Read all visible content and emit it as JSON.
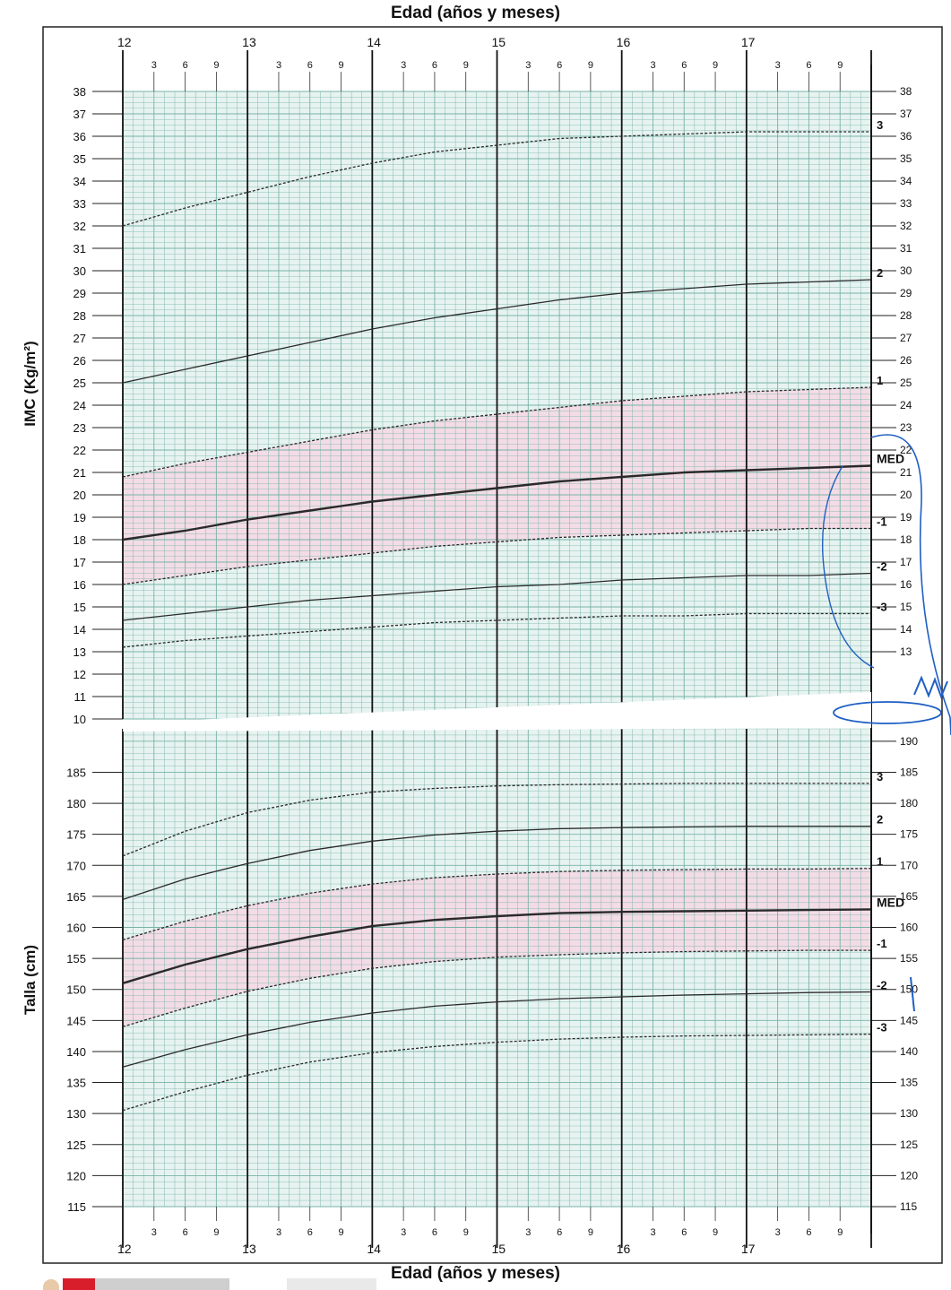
{
  "page": {
    "x_title_top": "Edad (años y meses)",
    "x_title_bottom": "Edad (años y meses)"
  },
  "colors": {
    "grid_green": "#77b3a7",
    "bg_green": "#e7f3f0",
    "band_pink": "#f5d7e3",
    "curve": "#2a2a2a",
    "ink_blue": "#1f5fc4",
    "major_line": "#111111"
  },
  "chart_data": [
    {
      "type": "line",
      "title": "",
      "xlabel": "Edad (años y meses)",
      "ylabel": "IMC (Kg/m²)",
      "xlim": [
        12,
        18
      ],
      "ylim": [
        10,
        38
      ],
      "x_major_ticks": [
        "12",
        "13",
        "14",
        "15",
        "16",
        "17"
      ],
      "x_minor_ticks": [
        "3",
        "6",
        "9"
      ],
      "y_ticks_left": [
        "10",
        "11",
        "12",
        "13",
        "14",
        "15",
        "16",
        "17",
        "18",
        "19",
        "20",
        "21",
        "22",
        "23",
        "24",
        "25",
        "26",
        "27",
        "28",
        "29",
        "30",
        "31",
        "32",
        "33",
        "34",
        "35",
        "36",
        "37",
        "38"
      ],
      "y_ticks_right": [
        "13",
        "14",
        "15",
        "16",
        "17",
        "18",
        "19",
        "20",
        "21",
        "22",
        "23",
        "24",
        "25",
        "26",
        "27",
        "28",
        "29",
        "30",
        "31",
        "32",
        "33",
        "34",
        "35",
        "36",
        "37",
        "38"
      ],
      "shaded_band": [
        -1,
        1
      ],
      "grid": true,
      "x": [
        12,
        12.5,
        13,
        13.5,
        14,
        14.5,
        15,
        15.5,
        16,
        16.5,
        17,
        17.5,
        18
      ],
      "series": [
        {
          "name": "3",
          "dashed": true,
          "values": [
            32.0,
            32.8,
            33.5,
            34.2,
            34.8,
            35.3,
            35.6,
            35.9,
            36.0,
            36.1,
            36.2,
            36.2,
            36.2
          ]
        },
        {
          "name": "2",
          "dashed": false,
          "values": [
            25.0,
            25.6,
            26.2,
            26.8,
            27.4,
            27.9,
            28.3,
            28.7,
            29.0,
            29.2,
            29.4,
            29.5,
            29.6
          ]
        },
        {
          "name": "1",
          "dashed": true,
          "values": [
            20.8,
            21.4,
            21.9,
            22.4,
            22.9,
            23.3,
            23.6,
            23.9,
            24.2,
            24.4,
            24.6,
            24.7,
            24.8
          ]
        },
        {
          "name": "MED",
          "dashed": false,
          "bold": true,
          "values": [
            18.0,
            18.4,
            18.9,
            19.3,
            19.7,
            20.0,
            20.3,
            20.6,
            20.8,
            21.0,
            21.1,
            21.2,
            21.3
          ]
        },
        {
          "name": "-1",
          "dashed": true,
          "values": [
            16.0,
            16.4,
            16.8,
            17.1,
            17.4,
            17.7,
            17.9,
            18.1,
            18.2,
            18.3,
            18.4,
            18.5,
            18.5
          ]
        },
        {
          "name": "-2",
          "dashed": false,
          "values": [
            14.4,
            14.7,
            15.0,
            15.3,
            15.5,
            15.7,
            15.9,
            16.0,
            16.2,
            16.3,
            16.4,
            16.4,
            16.5
          ]
        },
        {
          "name": "-3",
          "dashed": true,
          "values": [
            13.2,
            13.5,
            13.7,
            13.9,
            14.1,
            14.3,
            14.4,
            14.5,
            14.6,
            14.6,
            14.7,
            14.7,
            14.7
          ]
        }
      ]
    },
    {
      "type": "line",
      "title": "",
      "xlabel": "Edad (años y meses)",
      "ylabel": "Talla (cm)",
      "xlim": [
        12,
        18
      ],
      "ylim": [
        115,
        192
      ],
      "x_major_ticks": [
        "12",
        "13",
        "14",
        "15",
        "16",
        "17"
      ],
      "x_minor_ticks": [
        "3",
        "6",
        "9"
      ],
      "y_ticks_left": [
        "115",
        "120",
        "125",
        "130",
        "135",
        "140",
        "145",
        "150",
        "155",
        "160",
        "165",
        "170",
        "175",
        "180",
        "185"
      ],
      "y_ticks_right": [
        "115",
        "120",
        "125",
        "130",
        "135",
        "140",
        "145",
        "150",
        "155",
        "160",
        "165",
        "170",
        "175",
        "180",
        "185",
        "190"
      ],
      "shaded_band": [
        -1,
        1
      ],
      "grid": true,
      "x": [
        12,
        12.5,
        13,
        13.5,
        14,
        14.5,
        15,
        15.5,
        16,
        16.5,
        17,
        17.5,
        18
      ],
      "series": [
        {
          "name": "3",
          "dashed": true,
          "values": [
            171.5,
            175.5,
            178.5,
            180.5,
            181.8,
            182.4,
            182.8,
            183.0,
            183.1,
            183.2,
            183.2,
            183.2,
            183.2
          ]
        },
        {
          "name": "2",
          "dashed": false,
          "values": [
            164.5,
            167.8,
            170.3,
            172.4,
            173.9,
            174.9,
            175.5,
            175.9,
            176.1,
            176.2,
            176.3,
            176.3,
            176.3
          ]
        },
        {
          "name": "1",
          "dashed": true,
          "values": [
            158.0,
            161.0,
            163.5,
            165.5,
            167.0,
            168.0,
            168.6,
            169.0,
            169.2,
            169.3,
            169.4,
            169.4,
            169.5
          ]
        },
        {
          "name": "MED",
          "dashed": false,
          "bold": true,
          "values": [
            151.0,
            154.0,
            156.5,
            158.5,
            160.2,
            161.2,
            161.8,
            162.3,
            162.5,
            162.6,
            162.7,
            162.8,
            162.9
          ]
        },
        {
          "name": "-1",
          "dashed": true,
          "values": [
            144.0,
            147.0,
            149.7,
            151.8,
            153.4,
            154.5,
            155.2,
            155.6,
            155.9,
            156.1,
            156.2,
            156.3,
            156.3
          ]
        },
        {
          "name": "-2",
          "dashed": false,
          "values": [
            137.5,
            140.3,
            142.7,
            144.7,
            146.2,
            147.3,
            148.0,
            148.5,
            148.8,
            149.1,
            149.3,
            149.5,
            149.6
          ]
        },
        {
          "name": "-3",
          "dashed": true,
          "values": [
            130.5,
            133.5,
            136.2,
            138.3,
            139.8,
            140.8,
            141.5,
            142.0,
            142.3,
            142.5,
            142.6,
            142.7,
            142.8
          ]
        }
      ]
    }
  ]
}
